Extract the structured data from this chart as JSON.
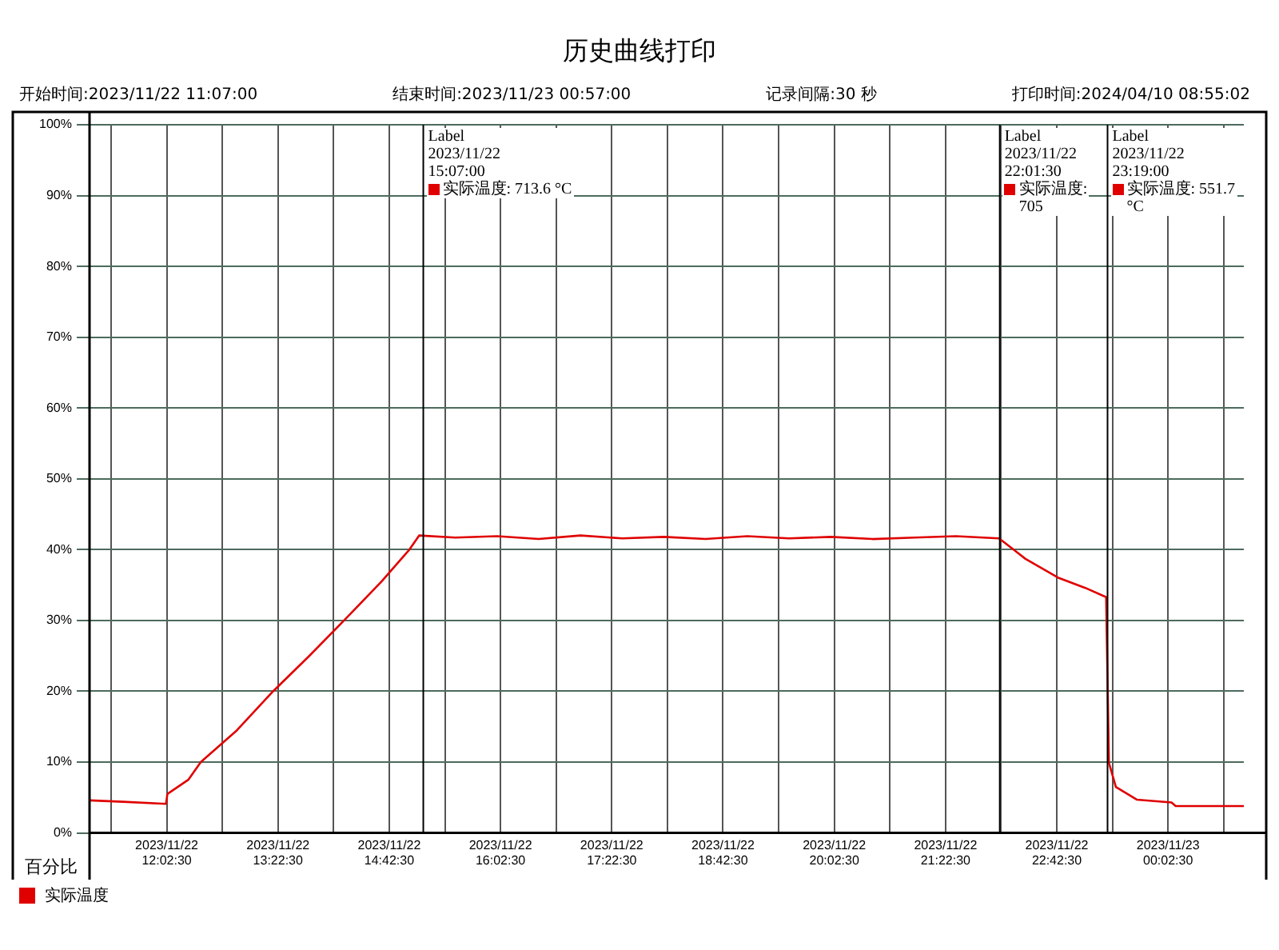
{
  "chart_data": {
    "type": "line",
    "title": "历史曲线打印",
    "ylabel": "百分比",
    "annotations": [
      "开始时间:2023/11/22 11:07:00",
      "结束时间:2023/11/23 00:57:00",
      "记录间隔:30 秒",
      "打印时间:2024/04/10 08:55:02"
    ],
    "xlim": [
      "2023-11-22T11:07",
      "2023-11-23T00:57"
    ],
    "xticks": [
      {
        "value": "2023-11-22T11:22:30",
        "label": null
      },
      {
        "value": "2023-11-22T12:02:30",
        "label": "2023/11/22\n12:02:30"
      },
      {
        "value": "2023-11-22T12:42:30",
        "label": null
      },
      {
        "value": "2023-11-22T13:22:30",
        "label": "2023/11/22\n13:22:30"
      },
      {
        "value": "2023-11-22T14:02:30",
        "label": null
      },
      {
        "value": "2023-11-22T14:42:30",
        "label": "2023/11/22\n14:42:30"
      },
      {
        "value": "2023-11-22T15:22:30",
        "label": null
      },
      {
        "value": "2023-11-22T16:02:30",
        "label": "2023/11/22\n16:02:30"
      },
      {
        "value": "2023-11-22T16:42:30",
        "label": null
      },
      {
        "value": "2023-11-22T17:22:30",
        "label": "2023/11/22\n17:22:30"
      },
      {
        "value": "2023-11-22T18:02:30",
        "label": null
      },
      {
        "value": "2023-11-22T18:42:30",
        "label": "2023/11/22\n18:42:30"
      },
      {
        "value": "2023-11-22T19:22:30",
        "label": null
      },
      {
        "value": "2023-11-22T20:02:30",
        "label": "2023/11/22\n20:02:30"
      },
      {
        "value": "2023-11-22T20:42:30",
        "label": null
      },
      {
        "value": "2023-11-22T21:22:30",
        "label": "2023/11/22\n21:22:30"
      },
      {
        "value": "2023-11-22T22:02:30",
        "label": null
      },
      {
        "value": "2023-11-22T22:42:30",
        "label": "2023/11/22\n22:42:30"
      },
      {
        "value": "2023-11-22T23:22:30",
        "label": null
      },
      {
        "value": "2023-11-23T00:02:30",
        "label": "2023/11/23\n00:02:30"
      },
      {
        "value": "2023-11-23T00:42:30",
        "label": null
      }
    ],
    "ylim": [
      0,
      100
    ],
    "yticks": [
      {
        "value": 0,
        "label": "0%"
      },
      {
        "value": 10,
        "label": "10%"
      },
      {
        "value": 20,
        "label": "20%"
      },
      {
        "value": 30,
        "label": "30%"
      },
      {
        "value": 40,
        "label": "40%"
      },
      {
        "value": 50,
        "label": "50%"
      },
      {
        "value": 60,
        "label": "60%"
      },
      {
        "value": 70,
        "label": "70%"
      },
      {
        "value": 80,
        "label": "80%"
      },
      {
        "value": 90,
        "label": "90%"
      },
      {
        "value": 100,
        "label": "100%"
      }
    ],
    "grid": true,
    "legend": "bottom left",
    "marker": "none",
    "line_style": "solid",
    "ref_lines": [
      {
        "axis": "x",
        "value": "2023-11-22T15:07",
        "label": "Label\n2023/11/22\n15:07:00\n实际温度: 713.6 °C",
        "color": "#000000"
      },
      {
        "axis": "x",
        "value": "2023-11-22T22:01:30",
        "label": "Label\n2023/11/22\n22:01:30\n实际温度: 705",
        "color": "#000000"
      },
      {
        "axis": "x",
        "value": "2023-11-22T23:19",
        "label": "Label\n2023/11/22\n23:19:00\n实际温度: 551.7 °C",
        "color": "#000000"
      }
    ],
    "x": [
      "2023-11-22T11:07",
      "2023-11-22T11:31",
      "2023-11-22T12:02",
      "2023-11-22T12:03",
      "2023-11-22T12:18",
      "2023-11-22T12:27",
      "2023-11-22T12:53",
      "2023-11-22T13:19",
      "2023-11-22T13:45",
      "2023-11-22T14:10",
      "2023-11-22T14:37",
      "2023-11-22T14:57",
      "2023-11-22T15:04",
      "2023-11-22T15:30",
      "2023-11-22T16:00",
      "2023-11-22T16:30",
      "2023-11-22T17:00",
      "2023-11-22T17:30",
      "2023-11-22T18:00",
      "2023-11-22T18:30",
      "2023-11-22T19:00",
      "2023-11-22T19:30",
      "2023-11-22T20:00",
      "2023-11-22T20:30",
      "2023-11-22T21:00",
      "2023-11-22T21:30",
      "2023-11-22T22:01",
      "2023-11-22T22:20",
      "2023-11-22T22:44",
      "2023-11-22T23:03",
      "2023-11-22T23:18",
      "2023-11-22T23:20",
      "2023-11-22T23:25",
      "2023-11-22T23:40",
      "2023-11-23T00:05",
      "2023-11-23T00:08",
      "2023-11-23T00:57"
    ],
    "series": [
      {
        "name": "实际温度",
        "color": "#e00000",
        "values": [
          4.6,
          4.4,
          4.1,
          5.5,
          7.5,
          10,
          14.5,
          20,
          25,
          30,
          35.5,
          40,
          42,
          41.7,
          41.9,
          41.5,
          42,
          41.6,
          41.8,
          41.5,
          41.9,
          41.6,
          41.8,
          41.5,
          41.7,
          41.9,
          41.6,
          38.7,
          36,
          34.6,
          33.3,
          9.9,
          6.5,
          4.7,
          4.3,
          3.8,
          3.8
        ]
      }
    ]
  }
}
